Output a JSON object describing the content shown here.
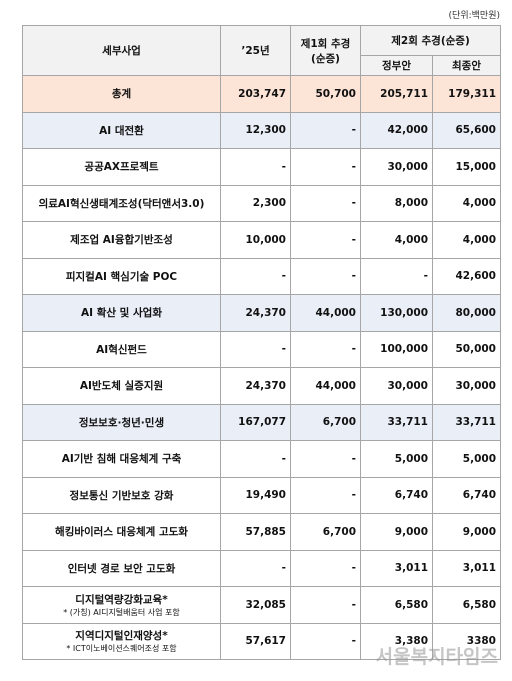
{
  "unit": "(단위:백만원)",
  "header": {
    "item": "세부사업",
    "y25": "’25년",
    "supp1": "제1회 추경",
    "supp1_note": "(순증)",
    "supp2": "제2회 추경(순증)",
    "gov": "정부안",
    "final": "최종안"
  },
  "rows": [
    {
      "name": "총계",
      "kind": "total",
      "values": [
        "203,747",
        "50,700",
        "205,711",
        "179,311"
      ]
    },
    {
      "name": "AI 대전환",
      "kind": "group",
      "values": [
        "12,300",
        "-",
        "42,000",
        "65,600"
      ]
    },
    {
      "name": "공공AX프로젝트",
      "kind": "item",
      "values": [
        "-",
        "-",
        "30,000",
        "15,000"
      ]
    },
    {
      "name": "의료AI혁신생태계조성(닥터앤서3.0)",
      "kind": "item",
      "values": [
        "2,300",
        "-",
        "8,000",
        "4,000"
      ]
    },
    {
      "name": "제조업 AI융합기반조성",
      "kind": "item",
      "values": [
        "10,000",
        "-",
        "4,000",
        "4,000"
      ]
    },
    {
      "name": "피지컬AI 핵심기술 POC",
      "kind": "item",
      "values": [
        "-",
        "-",
        "-",
        "42,600"
      ]
    },
    {
      "name": "AI 확산 및 사업화",
      "kind": "group",
      "values": [
        "24,370",
        "44,000",
        "130,000",
        "80,000"
      ]
    },
    {
      "name": "AI혁신펀드",
      "kind": "item",
      "values": [
        "-",
        "-",
        "100,000",
        "50,000"
      ]
    },
    {
      "name": "AI반도체 실증지원",
      "kind": "item",
      "values": [
        "24,370",
        "44,000",
        "30,000",
        "30,000"
      ]
    },
    {
      "name": "정보보호·청년·민생",
      "kind": "group",
      "values": [
        "167,077",
        "6,700",
        "33,711",
        "33,711"
      ]
    },
    {
      "name": "AI기반 침해 대응체계 구축",
      "kind": "item",
      "values": [
        "-",
        "-",
        "5,000",
        "5,000"
      ]
    },
    {
      "name": "정보통신 기반보호 강화",
      "kind": "item",
      "values": [
        "19,490",
        "-",
        "6,740",
        "6,740"
      ]
    },
    {
      "name": "해킹바이러스 대응체계 고도화",
      "kind": "item",
      "values": [
        "57,885",
        "6,700",
        "9,000",
        "9,000"
      ]
    },
    {
      "name": "인터넷 경로 보안 고도화",
      "kind": "item",
      "values": [
        "-",
        "-",
        "3,011",
        "3,011"
      ]
    },
    {
      "name": "디지털역량강화교육*",
      "note": "* (가칭) AI디지털배움터 사업 포함",
      "kind": "item",
      "values": [
        "32,085",
        "-",
        "6,580",
        "6,580"
      ]
    },
    {
      "name": "지역디지털인재양성*",
      "note": "* ICT이노베이션스퀘어조성 포함",
      "kind": "item",
      "values": [
        "57,617",
        "-",
        "3,380",
        "3380"
      ]
    }
  ],
  "watermark": "서울복지타임즈"
}
